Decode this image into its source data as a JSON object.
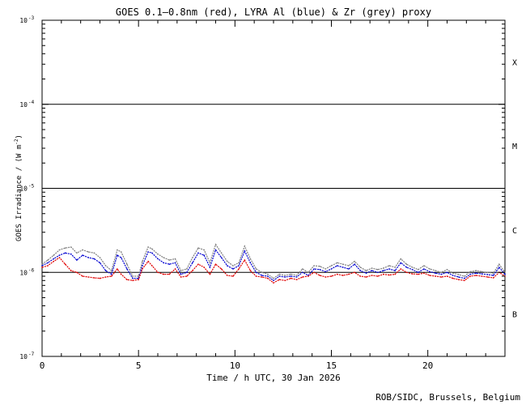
{
  "chart_data": {
    "type": "line",
    "title": "GOES 0.1—0.8nm (red), LYRA Al (blue) & Zr (grey) proxy",
    "xlabel": "Time / h UTC, 30 Jan 2026",
    "ylabel_main": "GOES Irradiance / (W m",
    "ylabel_exp": "-2",
    "ylabel_close": ")",
    "credit": "ROB/SIDC, Brussels, Belgium",
    "y_scale": "log",
    "xlim": [
      0,
      24
    ],
    "ylim": [
      1e-07,
      0.001
    ],
    "x_ticks": [
      {
        "value": 0,
        "label": "0"
      },
      {
        "value": 5,
        "label": "5"
      },
      {
        "value": 10,
        "label": "10"
      },
      {
        "value": 15,
        "label": "15"
      },
      {
        "value": 20,
        "label": "20"
      }
    ],
    "y_ticks": [
      {
        "exp": -7,
        "base": "10",
        "sup": "-7"
      },
      {
        "exp": -6,
        "base": "10",
        "sup": "-6"
      },
      {
        "exp": -5,
        "base": "10",
        "sup": "-5"
      },
      {
        "exp": -4,
        "base": "10",
        "sup": "-4"
      },
      {
        "exp": -3,
        "base": "10",
        "sup": "-3"
      }
    ],
    "class_lines": [
      1e-06,
      1e-05,
      0.0001
    ],
    "class_labels": [
      {
        "label": "B",
        "value": 3.2e-07
      },
      {
        "label": "C",
        "value": 3.2e-06
      },
      {
        "label": "M",
        "value": 3.2e-05
      },
      {
        "label": "X",
        "value": 0.00032
      }
    ],
    "series": [
      {
        "name": "GOES 0.1—0.8nm",
        "color": "#e00000",
        "x": [
          0,
          0.3,
          0.6,
          0.9,
          1.2,
          1.5,
          1.8,
          2.1,
          2.4,
          2.7,
          3.0,
          3.3,
          3.6,
          3.9,
          4.1,
          4.4,
          4.7,
          5.0,
          5.2,
          5.5,
          5.7,
          6.0,
          6.3,
          6.6,
          6.9,
          7.2,
          7.5,
          7.8,
          8.1,
          8.4,
          8.7,
          9.0,
          9.3,
          9.6,
          9.9,
          10.2,
          10.5,
          10.8,
          11.1,
          11.4,
          11.7,
          12.0,
          12.3,
          12.6,
          12.9,
          13.2,
          13.5,
          13.8,
          14.1,
          14.4,
          14.7,
          15.0,
          15.3,
          15.6,
          15.9,
          16.2,
          16.5,
          16.8,
          17.1,
          17.4,
          17.7,
          18.0,
          18.3,
          18.6,
          18.9,
          19.2,
          19.5,
          19.8,
          20.1,
          20.4,
          20.7,
          21.0,
          21.3,
          21.6,
          21.9,
          22.2,
          22.5,
          22.8,
          23.1,
          23.4,
          23.7,
          24.0
        ],
        "y": [
          1.15e-06,
          1.2e-06,
          1.35e-06,
          1.5e-06,
          1.25e-06,
          1.05e-06,
          1e-06,
          9e-07,
          8.8e-07,
          8.6e-07,
          8.5e-07,
          8.8e-07,
          9e-07,
          1.1e-06,
          9.5e-07,
          8.2e-07,
          8e-07,
          8.2e-07,
          1.1e-06,
          1.35e-06,
          1.2e-06,
          1e-06,
          9.5e-07,
          9.5e-07,
          1.1e-06,
          8.8e-07,
          9e-07,
          1.05e-06,
          1.25e-06,
          1.15e-06,
          9.5e-07,
          1.25e-06,
          1.1e-06,
          9.2e-07,
          9e-07,
          1.1e-06,
          1.4e-06,
          1.05e-06,
          9e-07,
          8.8e-07,
          8.5e-07,
          7.5e-07,
          8.2e-07,
          8e-07,
          8.5e-07,
          8.2e-07,
          8.8e-07,
          9e-07,
          1e-06,
          9.2e-07,
          8.8e-07,
          9e-07,
          9.5e-07,
          9.2e-07,
          9.5e-07,
          1e-06,
          9e-07,
          8.8e-07,
          9.2e-07,
          9e-07,
          9.5e-07,
          9.3e-07,
          9.5e-07,
          1.1e-06,
          1e-06,
          9.6e-07,
          9.5e-07,
          9.8e-07,
          9.2e-07,
          9e-07,
          8.8e-07,
          9e-07,
          8.5e-07,
          8.2e-07,
          8e-07,
          9e-07,
          9.2e-07,
          9e-07,
          8.8e-07,
          8.6e-07,
          1e-06,
          9e-07
        ]
      },
      {
        "name": "LYRA Al",
        "color": "#0000d0",
        "x": [
          0,
          0.3,
          0.6,
          0.9,
          1.2,
          1.5,
          1.8,
          2.1,
          2.4,
          2.7,
          3.0,
          3.3,
          3.6,
          3.9,
          4.1,
          4.4,
          4.7,
          5.0,
          5.2,
          5.5,
          5.7,
          6.0,
          6.3,
          6.6,
          6.9,
          7.2,
          7.5,
          7.8,
          8.1,
          8.4,
          8.7,
          9.0,
          9.3,
          9.6,
          9.9,
          10.2,
          10.5,
          10.8,
          11.1,
          11.4,
          11.7,
          12.0,
          12.3,
          12.6,
          12.9,
          13.2,
          13.5,
          13.8,
          14.1,
          14.4,
          14.7,
          15.0,
          15.3,
          15.6,
          15.9,
          16.2,
          16.5,
          16.8,
          17.1,
          17.4,
          17.7,
          18.0,
          18.3,
          18.6,
          18.9,
          19.2,
          19.5,
          19.8,
          20.1,
          20.4,
          20.7,
          21.0,
          21.3,
          21.6,
          21.9,
          22.2,
          22.5,
          22.8,
          23.1,
          23.4,
          23.7,
          24.0
        ],
        "y": [
          1.2e-06,
          1.3e-06,
          1.45e-06,
          1.6e-06,
          1.7e-06,
          1.65e-06,
          1.4e-06,
          1.6e-06,
          1.5e-06,
          1.45e-06,
          1.3e-06,
          1.05e-06,
          9.5e-07,
          1.6e-06,
          1.5e-06,
          1.1e-06,
          8.5e-07,
          8.5e-07,
          1.2e-06,
          1.75e-06,
          1.7e-06,
          1.45e-06,
          1.3e-06,
          1.25e-06,
          1.3e-06,
          9.5e-07,
          1e-06,
          1.3e-06,
          1.7e-06,
          1.6e-06,
          1.15e-06,
          1.85e-06,
          1.5e-06,
          1.2e-06,
          1.1e-06,
          1.2e-06,
          1.8e-06,
          1.3e-06,
          1e-06,
          9.2e-07,
          9e-07,
          8e-07,
          9e-07,
          8.8e-07,
          9e-07,
          8.8e-07,
          1e-06,
          9.2e-07,
          1.1e-06,
          1.08e-06,
          1.02e-06,
          1.1e-06,
          1.2e-06,
          1.15e-06,
          1.1e-06,
          1.25e-06,
          1.05e-06,
          9.8e-07,
          1.05e-06,
          1e-06,
          1.05e-06,
          1.1e-06,
          1.05e-06,
          1.3e-06,
          1.15e-06,
          1.08e-06,
          1e-06,
          1.1e-06,
          1.02e-06,
          9.8e-07,
          9.5e-07,
          1e-06,
          9.2e-07,
          8.8e-07,
          8.5e-07,
          9.5e-07,
          9.8e-07,
          9.6e-07,
          9.4e-07,
          9.2e-07,
          1.15e-06,
          9.5e-07
        ]
      },
      {
        "name": "Zr",
        "color": "#808080",
        "x": [
          0,
          0.3,
          0.6,
          0.9,
          1.2,
          1.5,
          1.8,
          2.1,
          2.4,
          2.7,
          3.0,
          3.3,
          3.6,
          3.9,
          4.1,
          4.4,
          4.7,
          5.0,
          5.2,
          5.5,
          5.7,
          6.0,
          6.3,
          6.6,
          6.9,
          7.2,
          7.5,
          7.8,
          8.1,
          8.4,
          8.7,
          9.0,
          9.3,
          9.6,
          9.9,
          10.2,
          10.5,
          10.8,
          11.1,
          11.4,
          11.7,
          12.0,
          12.3,
          12.6,
          12.9,
          13.2,
          13.5,
          13.8,
          14.1,
          14.4,
          14.7,
          15.0,
          15.3,
          15.6,
          15.9,
          16.2,
          16.5,
          16.8,
          17.1,
          17.4,
          17.7,
          18.0,
          18.3,
          18.6,
          18.9,
          19.2,
          19.5,
          19.8,
          20.1,
          20.4,
          20.7,
          21.0,
          21.3,
          21.6,
          21.9,
          22.2,
          22.5,
          22.8,
          23.1,
          23.4,
          23.7,
          24.0
        ],
        "y": [
          1.25e-06,
          1.4e-06,
          1.6e-06,
          1.85e-06,
          1.95e-06,
          2e-06,
          1.7e-06,
          1.85e-06,
          1.75e-06,
          1.7e-06,
          1.5e-06,
          1.2e-06,
          1.05e-06,
          1.85e-06,
          1.75e-06,
          1.25e-06,
          9e-07,
          9e-07,
          1.35e-06,
          2e-06,
          1.9e-06,
          1.65e-06,
          1.5e-06,
          1.4e-06,
          1.45e-06,
          1.05e-06,
          1.1e-06,
          1.5e-06,
          1.95e-06,
          1.85e-06,
          1.3e-06,
          2.15e-06,
          1.7e-06,
          1.35e-06,
          1.2e-06,
          1.3e-06,
          2.05e-06,
          1.45e-06,
          1.1e-06,
          1e-06,
          9.5e-07,
          8.5e-07,
          9.5e-07,
          9.2e-07,
          9.5e-07,
          9.2e-07,
          1.1e-06,
          1e-06,
          1.2e-06,
          1.18e-06,
          1.1e-06,
          1.2e-06,
          1.3e-06,
          1.25e-06,
          1.2e-06,
          1.35e-06,
          1.15e-06,
          1.05e-06,
          1.12e-06,
          1.08e-06,
          1.12e-06,
          1.2e-06,
          1.15e-06,
          1.45e-06,
          1.25e-06,
          1.15e-06,
          1.08e-06,
          1.2e-06,
          1.1e-06,
          1.05e-06,
          1e-06,
          1.08e-06,
          9.8e-07,
          9.4e-07,
          9e-07,
          1.02e-06,
          1.05e-06,
          1.02e-06,
          1e-06,
          9.8e-07,
          1.25e-06,
          1e-06
        ]
      }
    ]
  }
}
